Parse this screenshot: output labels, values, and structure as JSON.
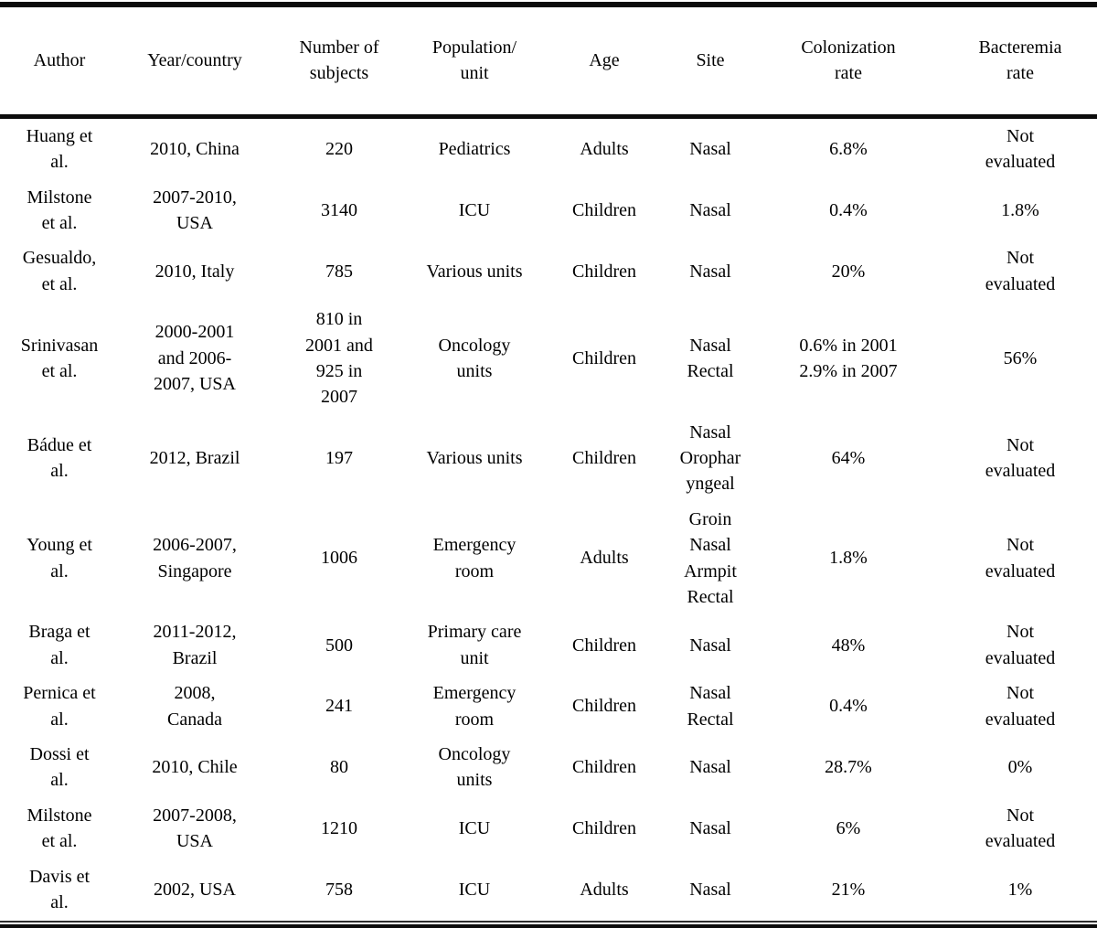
{
  "page": {
    "background": "#ffffff",
    "text_color": "#000000",
    "rule_color": "#0c0c0c"
  },
  "table": {
    "headers": [
      {
        "key": "author",
        "label": "Author"
      },
      {
        "key": "year_country",
        "label": "Year/country"
      },
      {
        "key": "subjects",
        "label": "Number of\nsubjects"
      },
      {
        "key": "population_unit",
        "label": "Population/\nunit"
      },
      {
        "key": "age",
        "label": "Age"
      },
      {
        "key": "site",
        "label": "Site"
      },
      {
        "key": "colonization_rate",
        "label": "Colonization\nrate"
      },
      {
        "key": "bacteremia_rate",
        "label": "Bacteremia\nrate"
      }
    ],
    "rows": [
      {
        "author": "Huang et\nal.",
        "year_country": "2010, China",
        "subjects": "220",
        "population_unit": "Pediatrics",
        "age": "Adults",
        "site": "Nasal",
        "colonization_rate": "6.8%",
        "bacteremia_rate": "Not\nevaluated"
      },
      {
        "author": "Milstone\net al.",
        "year_country": "2007-2010,\nUSA",
        "subjects": "3140",
        "population_unit": "ICU",
        "age": "Children",
        "site": "Nasal",
        "colonization_rate": "0.4%",
        "bacteremia_rate": "1.8%"
      },
      {
        "author": "Gesualdo,\net al.",
        "year_country": "2010, Italy",
        "subjects": "785",
        "population_unit": "Various units",
        "age": "Children",
        "site": "Nasal",
        "colonization_rate": "20%",
        "bacteremia_rate": "Not\nevaluated"
      },
      {
        "author": "Srinivasan\net al.",
        "year_country": "2000-2001\nand 2006-\n2007, USA",
        "subjects": "810 in\n2001 and\n925 in\n2007",
        "population_unit": "Oncology\nunits",
        "age": "Children",
        "site": "Nasal\nRectal",
        "colonization_rate": "0.6% in 2001\n2.9% in 2007",
        "bacteremia_rate": "56%"
      },
      {
        "author": "Bádue et\nal.",
        "year_country": "2012, Brazil",
        "subjects": "197",
        "population_unit": "Various units",
        "age": "Children",
        "site": "Nasal\nOrophar\nyngeal",
        "colonization_rate": "64%",
        "bacteremia_rate": "Not\nevaluated"
      },
      {
        "author": "Young et\nal.",
        "year_country": "2006-2007,\nSingapore",
        "subjects": "1006",
        "population_unit": "Emergency\nroom",
        "age": "Adults",
        "site": "Groin\nNasal\nArmpit\nRectal",
        "colonization_rate": "1.8%",
        "bacteremia_rate": "Not\nevaluated"
      },
      {
        "author": "Braga et\nal.",
        "year_country": "2011-2012,\nBrazil",
        "subjects": "500",
        "population_unit": "Primary care\nunit",
        "age": "Children",
        "site": "Nasal",
        "colonization_rate": "48%",
        "bacteremia_rate": "Not\nevaluated"
      },
      {
        "author": "Pernica et\nal.",
        "year_country": "2008,\nCanada",
        "subjects": "241",
        "population_unit": "Emergency\nroom",
        "age": "Children",
        "site": "Nasal\nRectal",
        "colonization_rate": "0.4%",
        "bacteremia_rate": "Not\nevaluated"
      },
      {
        "author": "Dossi et\nal.",
        "year_country": "2010, Chile",
        "subjects": "80",
        "population_unit": "Oncology\nunits",
        "age": "Children",
        "site": "Nasal",
        "colonization_rate": "28.7%",
        "bacteremia_rate": "0%"
      },
      {
        "author": "Milstone\net al.",
        "year_country": "2007-2008,\nUSA",
        "subjects": "1210",
        "population_unit": "ICU",
        "age": "Children",
        "site": "Nasal",
        "colonization_rate": "6%",
        "bacteremia_rate": "Not\nevaluated"
      },
      {
        "author": "Davis et\nal.",
        "year_country": "2002, USA",
        "subjects": "758",
        "population_unit": "ICU",
        "age": "Adults",
        "site": "Nasal",
        "colonization_rate": "21%",
        "bacteremia_rate": "1%"
      }
    ]
  }
}
